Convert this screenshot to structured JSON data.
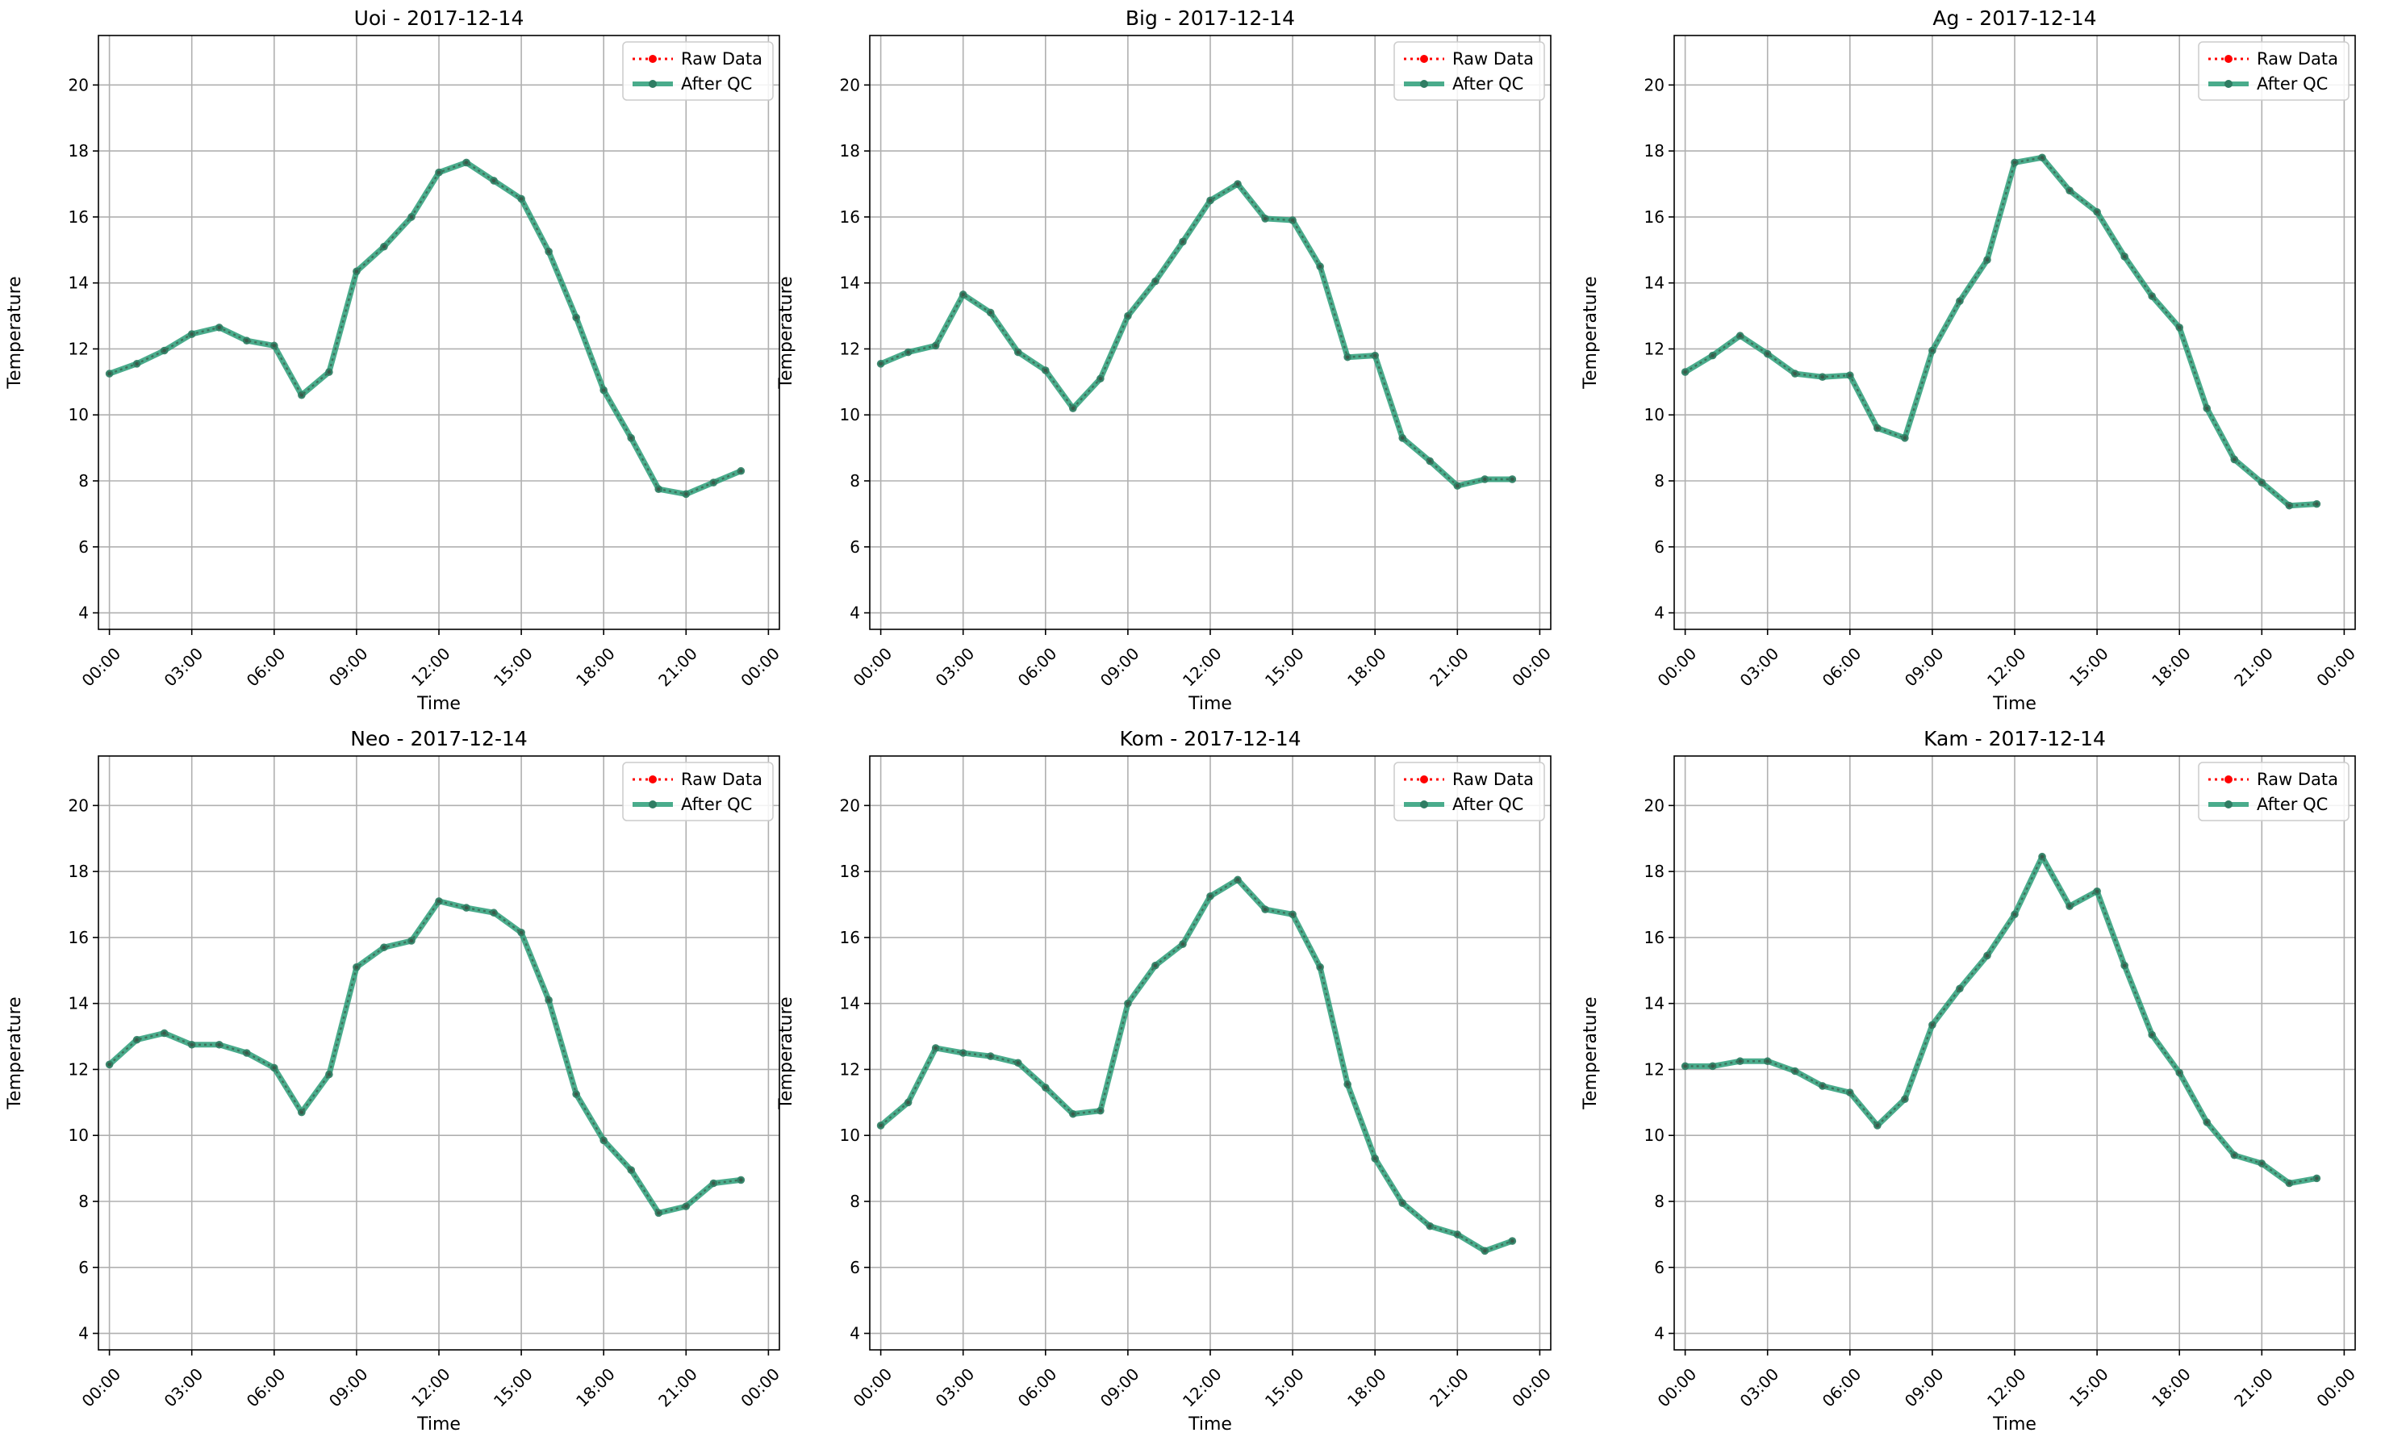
{
  "chart_data": [
    {
      "type": "line",
      "title": "Uoi - 2017-12-14",
      "xlabel": "Time",
      "ylabel": "Temperature",
      "ylim": [
        3.5,
        21.5
      ],
      "yticks": [
        "4",
        "6",
        "8",
        "10",
        "12",
        "14",
        "16",
        "18",
        "20"
      ],
      "xticks": [
        "00:00",
        "03:00",
        "06:00",
        "09:00",
        "12:00",
        "15:00",
        "18:00",
        "21:00",
        "00:00"
      ],
      "grid": true,
      "legend_position": "top-right",
      "x": [
        "00:00",
        "01:00",
        "02:00",
        "03:00",
        "04:00",
        "05:00",
        "06:00",
        "07:00",
        "08:00",
        "09:00",
        "10:00",
        "11:00",
        "12:00",
        "13:00",
        "14:00",
        "15:00",
        "16:00",
        "17:00",
        "18:00",
        "19:00",
        "20:00",
        "21:00",
        "22:00",
        "23:00"
      ],
      "series": [
        {
          "name": "Raw Data",
          "color": "#ff0000",
          "values": [
            11.25,
            11.55,
            11.95,
            12.45,
            12.65,
            12.25,
            12.1,
            10.6,
            11.3,
            14.35,
            15.1,
            16.0,
            17.35,
            17.65,
            17.1,
            16.55,
            14.95,
            12.95,
            10.75,
            9.3,
            7.75,
            7.6,
            7.95,
            8.3
          ]
        },
        {
          "name": "After QC",
          "color": "#2a9d78",
          "values": [
            11.25,
            11.55,
            11.95,
            12.45,
            12.65,
            12.25,
            12.1,
            10.6,
            11.3,
            14.35,
            15.1,
            16.0,
            17.35,
            17.65,
            17.1,
            16.55,
            14.95,
            12.95,
            10.75,
            9.3,
            7.75,
            7.6,
            7.95,
            8.3
          ]
        }
      ]
    },
    {
      "type": "line",
      "title": "Big - 2017-12-14",
      "xlabel": "Time",
      "ylabel": "Temperature",
      "ylim": [
        3.5,
        21.5
      ],
      "yticks": [
        "4",
        "6",
        "8",
        "10",
        "12",
        "14",
        "16",
        "18",
        "20"
      ],
      "xticks": [
        "00:00",
        "03:00",
        "06:00",
        "09:00",
        "12:00",
        "15:00",
        "18:00",
        "21:00",
        "00:00"
      ],
      "grid": true,
      "legend_position": "top-right",
      "x": [
        "00:00",
        "01:00",
        "02:00",
        "03:00",
        "04:00",
        "05:00",
        "06:00",
        "07:00",
        "08:00",
        "09:00",
        "10:00",
        "11:00",
        "12:00",
        "13:00",
        "14:00",
        "15:00",
        "16:00",
        "17:00",
        "18:00",
        "19:00",
        "20:00",
        "21:00",
        "22:00",
        "23:00"
      ],
      "series": [
        {
          "name": "Raw Data",
          "color": "#ff0000",
          "values": [
            11.55,
            11.9,
            12.1,
            13.65,
            13.1,
            11.9,
            11.35,
            10.2,
            11.1,
            13.0,
            14.05,
            15.25,
            16.5,
            17.0,
            15.95,
            15.9,
            14.5,
            11.75,
            11.8,
            9.3,
            8.6,
            7.85,
            8.05,
            8.05
          ]
        },
        {
          "name": "After QC",
          "color": "#2a9d78",
          "values": [
            11.55,
            11.9,
            12.1,
            13.65,
            13.1,
            11.9,
            11.35,
            10.2,
            11.1,
            13.0,
            14.05,
            15.25,
            16.5,
            17.0,
            15.95,
            15.9,
            14.5,
            11.75,
            11.8,
            9.3,
            8.6,
            7.85,
            8.05,
            8.05
          ]
        }
      ]
    },
    {
      "type": "line",
      "title": "Ag - 2017-12-14",
      "xlabel": "Time",
      "ylabel": "Temperature",
      "ylim": [
        3.5,
        21.5
      ],
      "yticks": [
        "4",
        "6",
        "8",
        "10",
        "12",
        "14",
        "16",
        "18",
        "20"
      ],
      "xticks": [
        "00:00",
        "03:00",
        "06:00",
        "09:00",
        "12:00",
        "15:00",
        "18:00",
        "21:00",
        "00:00"
      ],
      "grid": true,
      "legend_position": "top-right",
      "x": [
        "00:00",
        "01:00",
        "02:00",
        "03:00",
        "04:00",
        "05:00",
        "06:00",
        "07:00",
        "08:00",
        "09:00",
        "10:00",
        "11:00",
        "12:00",
        "13:00",
        "14:00",
        "15:00",
        "16:00",
        "17:00",
        "18:00",
        "19:00",
        "20:00",
        "21:00",
        "22:00",
        "23:00"
      ],
      "series": [
        {
          "name": "Raw Data",
          "color": "#ff0000",
          "values": [
            11.3,
            11.8,
            12.4,
            11.85,
            11.25,
            11.15,
            11.2,
            9.6,
            9.3,
            11.95,
            13.45,
            14.7,
            17.65,
            17.8,
            16.8,
            16.15,
            14.8,
            13.6,
            12.65,
            10.2,
            8.65,
            7.95,
            7.25,
            7.3
          ]
        },
        {
          "name": "After QC",
          "color": "#2a9d78",
          "values": [
            11.3,
            11.8,
            12.4,
            11.85,
            11.25,
            11.15,
            11.2,
            9.6,
            9.3,
            11.95,
            13.45,
            14.7,
            17.65,
            17.8,
            16.8,
            16.15,
            14.8,
            13.6,
            12.65,
            10.2,
            8.65,
            7.95,
            7.25,
            7.3
          ]
        }
      ]
    },
    {
      "type": "line",
      "title": "Neo - 2017-12-14",
      "xlabel": "Time",
      "ylabel": "Temperature",
      "ylim": [
        3.5,
        21.5
      ],
      "yticks": [
        "4",
        "6",
        "8",
        "10",
        "12",
        "14",
        "16",
        "18",
        "20"
      ],
      "xticks": [
        "00:00",
        "03:00",
        "06:00",
        "09:00",
        "12:00",
        "15:00",
        "18:00",
        "21:00",
        "00:00"
      ],
      "grid": true,
      "legend_position": "top-right",
      "x": [
        "00:00",
        "01:00",
        "02:00",
        "03:00",
        "04:00",
        "05:00",
        "06:00",
        "07:00",
        "08:00",
        "09:00",
        "10:00",
        "11:00",
        "12:00",
        "13:00",
        "14:00",
        "15:00",
        "16:00",
        "17:00",
        "18:00",
        "19:00",
        "20:00",
        "21:00",
        "22:00",
        "23:00"
      ],
      "series": [
        {
          "name": "Raw Data",
          "color": "#ff0000",
          "values": [
            12.15,
            12.9,
            13.1,
            12.75,
            12.75,
            12.5,
            12.05,
            10.7,
            11.85,
            15.1,
            15.7,
            15.9,
            17.1,
            16.9,
            16.75,
            16.15,
            14.1,
            11.25,
            9.85,
            8.95,
            7.65,
            7.85,
            8.55,
            8.65
          ]
        },
        {
          "name": "After QC",
          "color": "#2a9d78",
          "values": [
            12.15,
            12.9,
            13.1,
            12.75,
            12.75,
            12.5,
            12.05,
            10.7,
            11.85,
            15.1,
            15.7,
            15.9,
            17.1,
            16.9,
            16.75,
            16.15,
            14.1,
            11.25,
            9.85,
            8.95,
            7.65,
            7.85,
            8.55,
            8.65
          ]
        }
      ]
    },
    {
      "type": "line",
      "title": "Kom - 2017-12-14",
      "xlabel": "Time",
      "ylabel": "Temperature",
      "ylim": [
        3.5,
        21.5
      ],
      "yticks": [
        "4",
        "6",
        "8",
        "10",
        "12",
        "14",
        "16",
        "18",
        "20"
      ],
      "xticks": [
        "00:00",
        "03:00",
        "06:00",
        "09:00",
        "12:00",
        "15:00",
        "18:00",
        "21:00",
        "00:00"
      ],
      "grid": true,
      "legend_position": "top-right",
      "x": [
        "00:00",
        "01:00",
        "02:00",
        "03:00",
        "04:00",
        "05:00",
        "06:00",
        "07:00",
        "08:00",
        "09:00",
        "10:00",
        "11:00",
        "12:00",
        "13:00",
        "14:00",
        "15:00",
        "16:00",
        "17:00",
        "18:00",
        "19:00",
        "20:00",
        "21:00",
        "22:00",
        "23:00"
      ],
      "series": [
        {
          "name": "Raw Data",
          "color": "#ff0000",
          "values": [
            10.3,
            11.0,
            12.65,
            12.5,
            12.4,
            12.2,
            11.45,
            10.65,
            10.75,
            14.0,
            15.15,
            15.8,
            17.25,
            17.75,
            16.85,
            16.7,
            15.1,
            11.55,
            9.3,
            7.95,
            7.25,
            7.0,
            6.5,
            6.8
          ]
        },
        {
          "name": "After QC",
          "color": "#2a9d78",
          "values": [
            10.3,
            11.0,
            12.65,
            12.5,
            12.4,
            12.2,
            11.45,
            10.65,
            10.75,
            14.0,
            15.15,
            15.8,
            17.25,
            17.75,
            16.85,
            16.7,
            15.1,
            11.55,
            9.3,
            7.95,
            7.25,
            7.0,
            6.5,
            6.8
          ]
        }
      ]
    },
    {
      "type": "line",
      "title": "Kam - 2017-12-14",
      "xlabel": "Time",
      "ylabel": "Temperature",
      "ylim": [
        3.5,
        21.5
      ],
      "yticks": [
        "4",
        "6",
        "8",
        "10",
        "12",
        "14",
        "16",
        "18",
        "20"
      ],
      "xticks": [
        "00:00",
        "03:00",
        "06:00",
        "09:00",
        "12:00",
        "15:00",
        "18:00",
        "21:00",
        "00:00"
      ],
      "grid": true,
      "legend_position": "top-right",
      "x": [
        "00:00",
        "01:00",
        "02:00",
        "03:00",
        "04:00",
        "05:00",
        "06:00",
        "07:00",
        "08:00",
        "09:00",
        "10:00",
        "11:00",
        "12:00",
        "13:00",
        "14:00",
        "15:00",
        "16:00",
        "17:00",
        "18:00",
        "19:00",
        "20:00",
        "21:00",
        "22:00",
        "23:00"
      ],
      "series": [
        {
          "name": "Raw Data",
          "color": "#ff0000",
          "values": [
            12.1,
            12.1,
            12.25,
            12.25,
            11.95,
            11.5,
            11.3,
            10.3,
            11.1,
            13.35,
            14.45,
            15.45,
            16.7,
            18.45,
            16.95,
            17.4,
            15.15,
            13.05,
            11.9,
            10.4,
            9.4,
            9.15,
            8.55,
            8.7
          ]
        },
        {
          "name": "After QC",
          "color": "#2a9d78",
          "values": [
            12.1,
            12.1,
            12.25,
            12.25,
            11.95,
            11.5,
            11.3,
            10.3,
            11.1,
            13.35,
            14.45,
            15.45,
            16.7,
            18.45,
            16.95,
            17.4,
            15.15,
            13.05,
            11.9,
            10.4,
            9.4,
            9.15,
            8.55,
            8.7
          ]
        }
      ]
    }
  ]
}
